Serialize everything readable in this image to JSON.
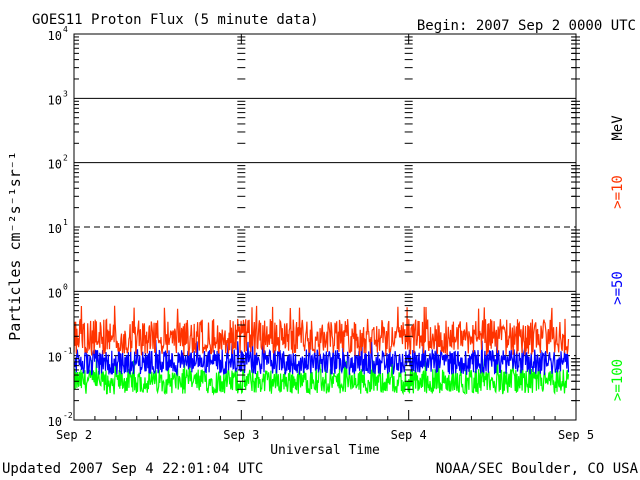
{
  "chart_data": {
    "type": "line",
    "title": "GOES11 Proton Flux (5 minute data)",
    "begin_label": "Begin: 2007 Sep 2 0000 UTC",
    "xlabel": "Universal Time",
    "ylabel": "Particles cm⁻²s⁻¹sr⁻¹",
    "y_scale": "log",
    "ylim": [
      0.01,
      10000
    ],
    "y_ticks": [
      {
        "base": "10",
        "exp": "-2",
        "value": 0.01
      },
      {
        "base": "10",
        "exp": "-1",
        "value": 0.1
      },
      {
        "base": "10",
        "exp": "0",
        "value": 1
      },
      {
        "base": "10",
        "exp": "1",
        "value": 10
      },
      {
        "base": "10",
        "exp": "2",
        "value": 100
      },
      {
        "base": "10",
        "exp": "3",
        "value": 1000
      },
      {
        "base": "10",
        "exp": "4",
        "value": 10000
      }
    ],
    "x_ticks": [
      "Sep 2",
      "Sep 3",
      "Sep 4",
      "Sep 5"
    ],
    "xlim_days": [
      0,
      3
    ],
    "unit_label": "MeV",
    "series": [
      {
        "name": ">=10",
        "color": "#ff3300",
        "typical": 0.2,
        "min": 0.1,
        "max": 0.6
      },
      {
        "name": ">=50",
        "color": "#0000ff",
        "typical": 0.08,
        "min": 0.05,
        "max": 0.18
      },
      {
        "name": ">=100",
        "color": "#00ff00",
        "typical": 0.04,
        "min": 0.025,
        "max": 0.09
      }
    ],
    "reference_lines": [
      {
        "value": 10,
        "style": "dashed"
      },
      {
        "value": 0.1,
        "style": "dashed"
      }
    ],
    "grid": true
  },
  "footer": {
    "updated": "Updated 2007 Sep  4 22:01:04 UTC",
    "source": "NOAA/SEC Boulder, CO USA"
  }
}
